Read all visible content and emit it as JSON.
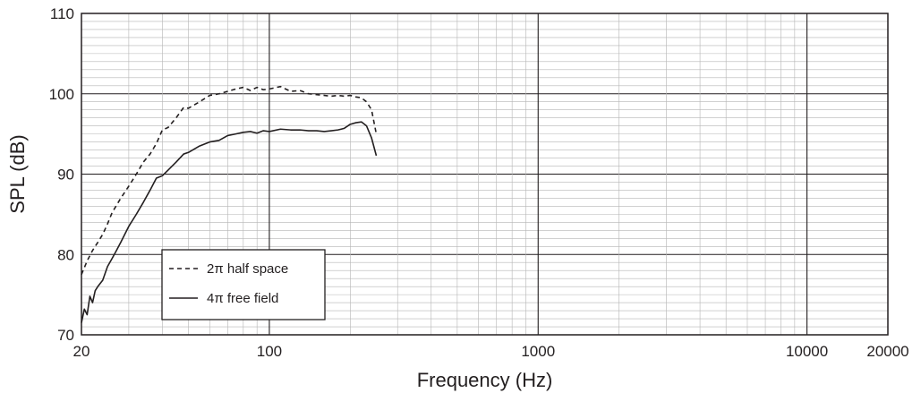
{
  "chart_data": {
    "type": "line",
    "xlabel": "Frequency (Hz)",
    "ylabel": "SPL (dB)",
    "xscale": "log",
    "xlim": [
      20,
      20000
    ],
    "ylim": [
      70,
      110
    ],
    "x_ticks": [
      20,
      100,
      1000,
      10000,
      20000
    ],
    "x_tick_labels": [
      "20",
      "100",
      "1000",
      "10000",
      "20000"
    ],
    "y_ticks": [
      70,
      80,
      90,
      100,
      110
    ],
    "y_tick_labels": [
      "70",
      "80",
      "90",
      "100",
      "110"
    ],
    "grid": true,
    "legend_position": "lower-left",
    "series": [
      {
        "name": "2π half space",
        "style": "dashed",
        "color": "#231f20",
        "x": [
          20,
          21,
          22,
          23,
          24,
          25,
          26,
          28,
          30,
          32,
          34,
          36,
          38,
          40,
          42,
          45,
          48,
          50,
          55,
          60,
          65,
          70,
          75,
          80,
          85,
          90,
          95,
          100,
          110,
          120,
          130,
          140,
          150,
          160,
          170,
          180,
          190,
          200,
          210,
          220,
          230,
          240,
          250
        ],
        "values": [
          77.5,
          79.2,
          80.5,
          81.5,
          82.5,
          83.8,
          85.2,
          87.0,
          88.5,
          90.0,
          91.5,
          92.5,
          93.8,
          95.5,
          95.8,
          97.0,
          98.3,
          98.2,
          99.0,
          99.8,
          100.0,
          100.3,
          100.6,
          100.8,
          100.4,
          100.8,
          100.5,
          100.6,
          100.9,
          100.3,
          100.4,
          100.0,
          99.9,
          99.8,
          99.7,
          99.8,
          99.7,
          99.8,
          99.6,
          99.5,
          99.0,
          98.0,
          95.0
        ]
      },
      {
        "name": "4π free field",
        "style": "solid",
        "color": "#231f20",
        "x": [
          20,
          20.5,
          21,
          21.5,
          22,
          22.5,
          23,
          24,
          25,
          26,
          27,
          28,
          30,
          32,
          34,
          36,
          38,
          40,
          42,
          45,
          48,
          50,
          55,
          60,
          65,
          70,
          75,
          80,
          85,
          90,
          95,
          100,
          110,
          120,
          130,
          140,
          150,
          160,
          170,
          180,
          190,
          200,
          210,
          220,
          230,
          240,
          250
        ],
        "values": [
          71.5,
          73.2,
          72.5,
          74.8,
          74.0,
          75.5,
          76.0,
          76.8,
          78.5,
          79.5,
          80.5,
          81.5,
          83.5,
          85.0,
          86.5,
          88.0,
          89.5,
          89.8,
          90.5,
          91.5,
          92.5,
          92.7,
          93.5,
          94.0,
          94.2,
          94.8,
          95.0,
          95.2,
          95.3,
          95.1,
          95.4,
          95.3,
          95.6,
          95.5,
          95.5,
          95.4,
          95.4,
          95.3,
          95.4,
          95.5,
          95.7,
          96.2,
          96.4,
          96.5,
          96.0,
          94.5,
          92.3
        ]
      }
    ]
  }
}
